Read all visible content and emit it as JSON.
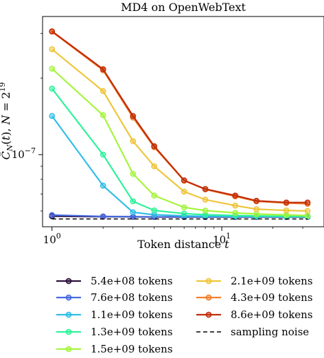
{
  "chart_data": {
    "type": "line",
    "title": "MD4 on OpenWebText",
    "xlabel": "Token distance t",
    "ylabel": "Ĉ_N(t), N = 2^19",
    "xscale": "log",
    "yscale": "log",
    "xlim": [
      0.88,
      40
    ],
    "ylim": [
      5.2e-08,
      3.5e-07
    ],
    "xticks": [
      {
        "value": 1,
        "label": "10^0"
      },
      {
        "value": 10,
        "label": "10^1"
      }
    ],
    "yticks": [
      {
        "value": 1e-07,
        "label": "10^-7"
      }
    ],
    "x": [
      1,
      2,
      3,
      4,
      6,
      8,
      12,
      16,
      24,
      32
    ],
    "series": [
      {
        "name": "5.4e+08 tokens",
        "color": "#2b0f3b",
        "marker": "o",
        "values": [
          5.72e-08,
          5.7e-08,
          5.69e-08,
          5.68e-08,
          5.68e-08,
          5.68e-08,
          5.68e-08,
          5.68e-08,
          5.68e-08,
          5.68e-08
        ]
      },
      {
        "name": "7.6e+08 tokens",
        "color": "#4669e0",
        "marker": "o",
        "values": [
          5.78e-08,
          5.71e-08,
          5.7e-08,
          5.69e-08,
          5.69e-08,
          5.69e-08,
          5.69e-08,
          5.69e-08,
          5.69e-08,
          5.69e-08
        ]
      },
      {
        "name": "1.1e+09 tokens",
        "color": "#2fbde7",
        "marker": "o",
        "values": [
          1.42e-07,
          7.55e-08,
          5.93e-08,
          5.8e-08,
          5.74e-08,
          5.72e-08,
          5.71e-08,
          5.71e-08,
          5.7e-08,
          5.7e-08
        ]
      },
      {
        "name": "1.3e+09 tokens",
        "color": "#2ef29a",
        "marker": "o",
        "values": [
          1.82e-07,
          1e-07,
          6.55e-08,
          6.03e-08,
          5.86e-08,
          5.8e-08,
          5.76e-08,
          5.74e-08,
          5.72e-08,
          5.71e-08
        ]
      },
      {
        "name": "1.5e+09 tokens",
        "color": "#a5f53e",
        "marker": "o",
        "values": [
          2.18e-07,
          1.43e-07,
          8.4e-08,
          6.9e-08,
          6.2e-08,
          6.02e-08,
          5.9e-08,
          5.84e-08,
          5.79e-08,
          5.76e-08
        ]
      },
      {
        "name": "2.1e+09 tokens",
        "color": "#eec53a",
        "marker": "o",
        "values": [
          2.6e-07,
          1.78e-07,
          1.13e-07,
          9e-08,
          7.15e-08,
          6.65e-08,
          6.3e-08,
          6.1e-08,
          6.03e-08,
          6e-08
        ]
      },
      {
        "name": "4.3e+09 tokens",
        "color": "#f37e2a",
        "marker": "o",
        "values": [
          3.05e-07,
          2.15e-07,
          1.4e-07,
          1.07e-07,
          7.9e-08,
          7.3e-08,
          6.85e-08,
          6.55e-08,
          6.45e-08,
          6.4e-08
        ]
      },
      {
        "name": "8.6e+09 tokens",
        "color": "#c12c08",
        "marker": "o",
        "values": [
          3.06e-07,
          2.17e-07,
          1.42e-07,
          1.08e-07,
          7.92e-08,
          7.32e-08,
          6.9e-08,
          6.58e-08,
          6.48e-08,
          6.48e-08
        ]
      },
      {
        "name": "sampling noise",
        "color": "#000000",
        "marker": "none",
        "dashed": true,
        "values": [
          5.58e-08,
          5.58e-08,
          5.58e-08,
          5.58e-08,
          5.58e-08,
          5.58e-08,
          5.58e-08,
          5.58e-08,
          5.58e-08,
          5.58e-08
        ]
      }
    ],
    "legend": {
      "placement": "below",
      "columns": 2
    }
  }
}
